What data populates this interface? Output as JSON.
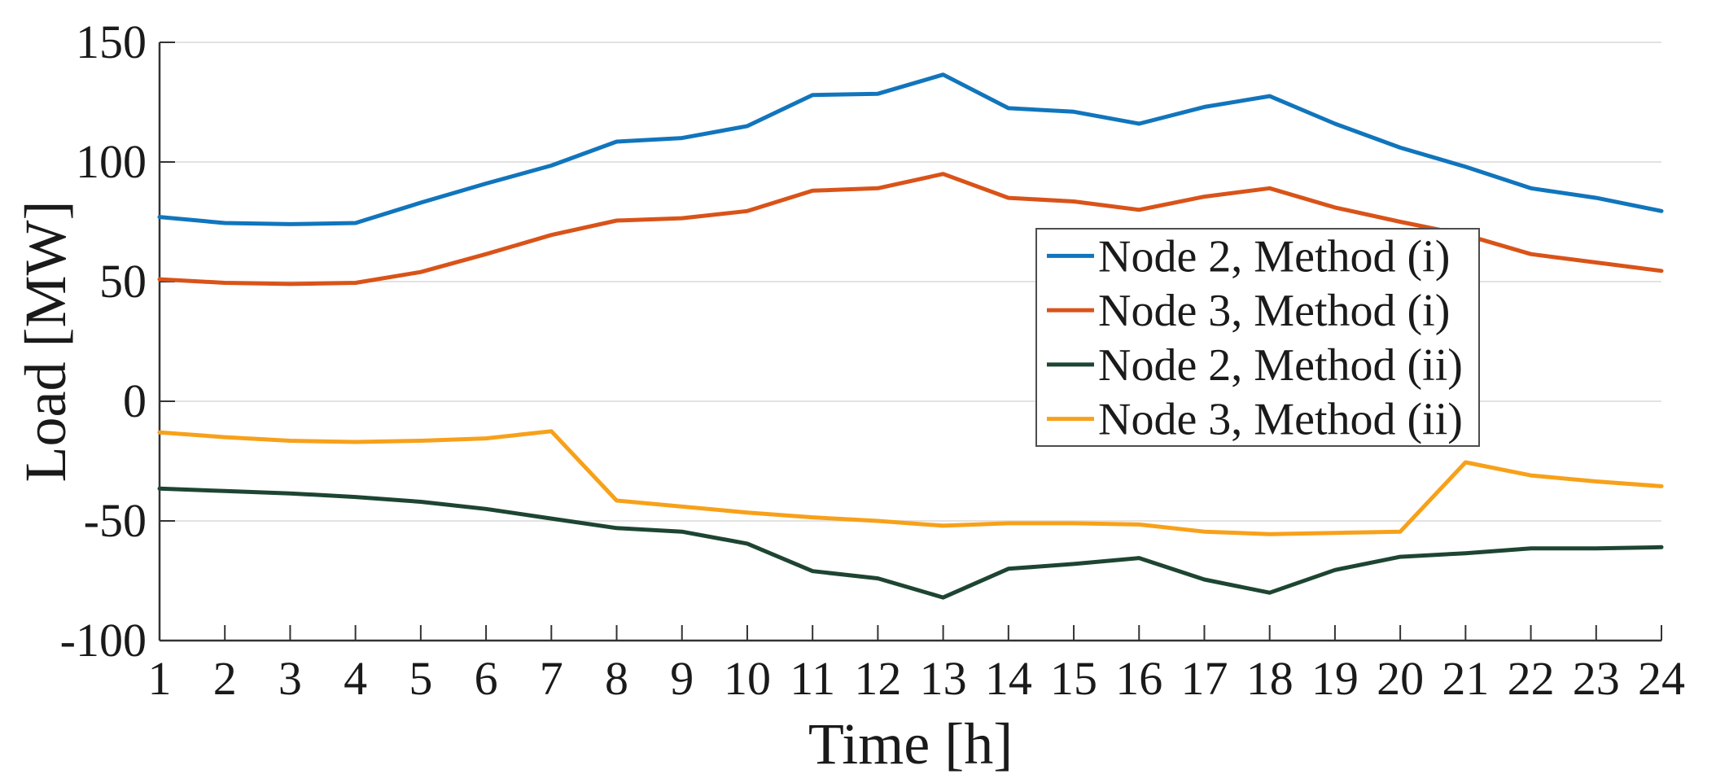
{
  "figure": {
    "background": "#ffffff"
  },
  "style": {
    "grid_color": "#e2e2e2",
    "spine_color": "#333333",
    "tick_color": "#333333",
    "text_color": "#1a1a1a",
    "legend_border_color": "#4d4d4d",
    "legend_background": "#ffffff"
  },
  "chart_data": {
    "type": "line",
    "title": "",
    "xlabel": "Time [h]",
    "ylabel": "Load [MW]",
    "xlim": [
      1,
      24
    ],
    "ylim": [
      -100,
      150
    ],
    "xticks": [
      1,
      2,
      3,
      4,
      5,
      6,
      7,
      8,
      9,
      10,
      11,
      12,
      13,
      14,
      15,
      16,
      17,
      18,
      19,
      20,
      21,
      22,
      23,
      24
    ],
    "yticks": [
      -100,
      -50,
      0,
      50,
      100,
      150
    ],
    "grid": "horizontal",
    "legend_position": "inside-upper-right",
    "x": [
      1,
      2,
      3,
      4,
      5,
      6,
      7,
      8,
      9,
      10,
      11,
      12,
      13,
      14,
      15,
      16,
      17,
      18,
      19,
      20,
      21,
      22,
      23,
      24
    ],
    "series": [
      {
        "name": "Node 2, Method (i)",
        "color": "#1175bc",
        "values": [
          77,
          74.5,
          74,
          74.5,
          83,
          91,
          98.5,
          108.5,
          110,
          115,
          128,
          128.5,
          136.5,
          122.5,
          121,
          116,
          123,
          127.5,
          116,
          106,
          98,
          89,
          85,
          79.5
        ]
      },
      {
        "name": "Node 3, Method (i)",
        "color": "#d95319",
        "values": [
          51,
          49.5,
          49,
          49.5,
          54,
          61.5,
          69.5,
          75.5,
          76.5,
          79.5,
          88,
          89,
          95,
          85,
          83.5,
          80,
          85.5,
          89,
          81,
          75,
          69.5,
          61.5,
          58,
          54.5
        ]
      },
      {
        "name": "Node 2, Method (ii)",
        "color": "#1d4532",
        "values": [
          -36.5,
          -37.5,
          -38.5,
          -40,
          -42,
          -45,
          -49,
          -53,
          -54.5,
          -59.5,
          -71,
          -74,
          -82,
          -70,
          -68,
          -65.5,
          -74.5,
          -80,
          -70.5,
          -65,
          -63.5,
          -61.5,
          -61.5,
          -61
        ]
      },
      {
        "name": "Node 3, Method (ii)",
        "color": "#f7a11a",
        "values": [
          -13,
          -15,
          -16.5,
          -17,
          -16.5,
          -15.5,
          -12.5,
          -41.5,
          -44,
          -46.5,
          -48.5,
          -50,
          -52,
          -51,
          -51,
          -51.5,
          -54.5,
          -55.5,
          -55,
          -54.5,
          -25.5,
          -31,
          -33.5,
          -35.5
        ]
      }
    ]
  }
}
